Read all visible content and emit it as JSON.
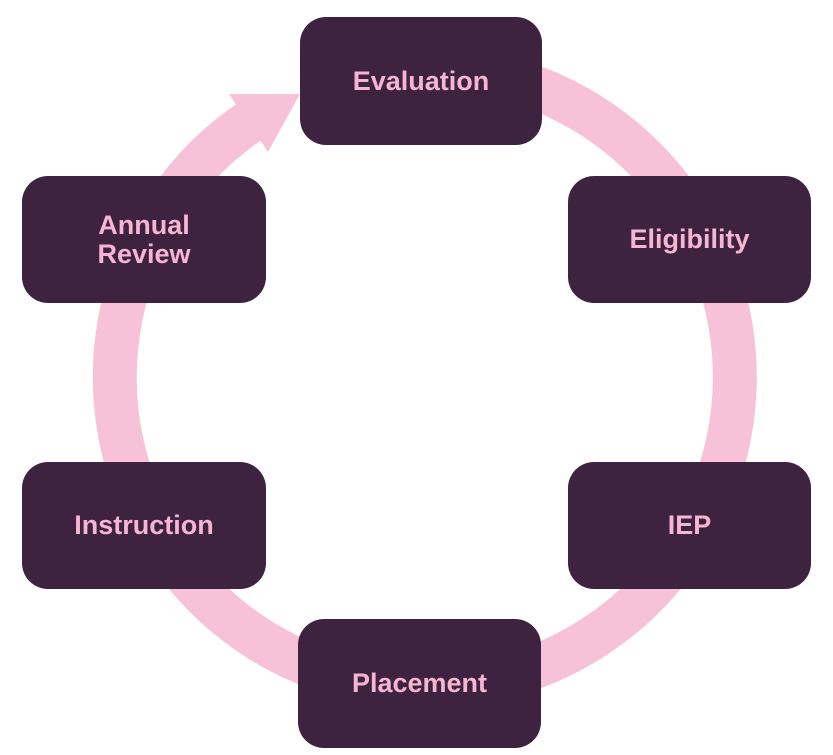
{
  "colors": {
    "node_fill": "#3d2340",
    "node_text": "#f6b5d2",
    "ring": "#f7c2d8",
    "background": "#ffffff"
  },
  "nodes": {
    "evaluation": "Evaluation",
    "eligibility": "Eligibility",
    "iep": "IEP",
    "placement": "Placement",
    "instruction": "Instruction",
    "annual_review": "Annual\nReview"
  }
}
